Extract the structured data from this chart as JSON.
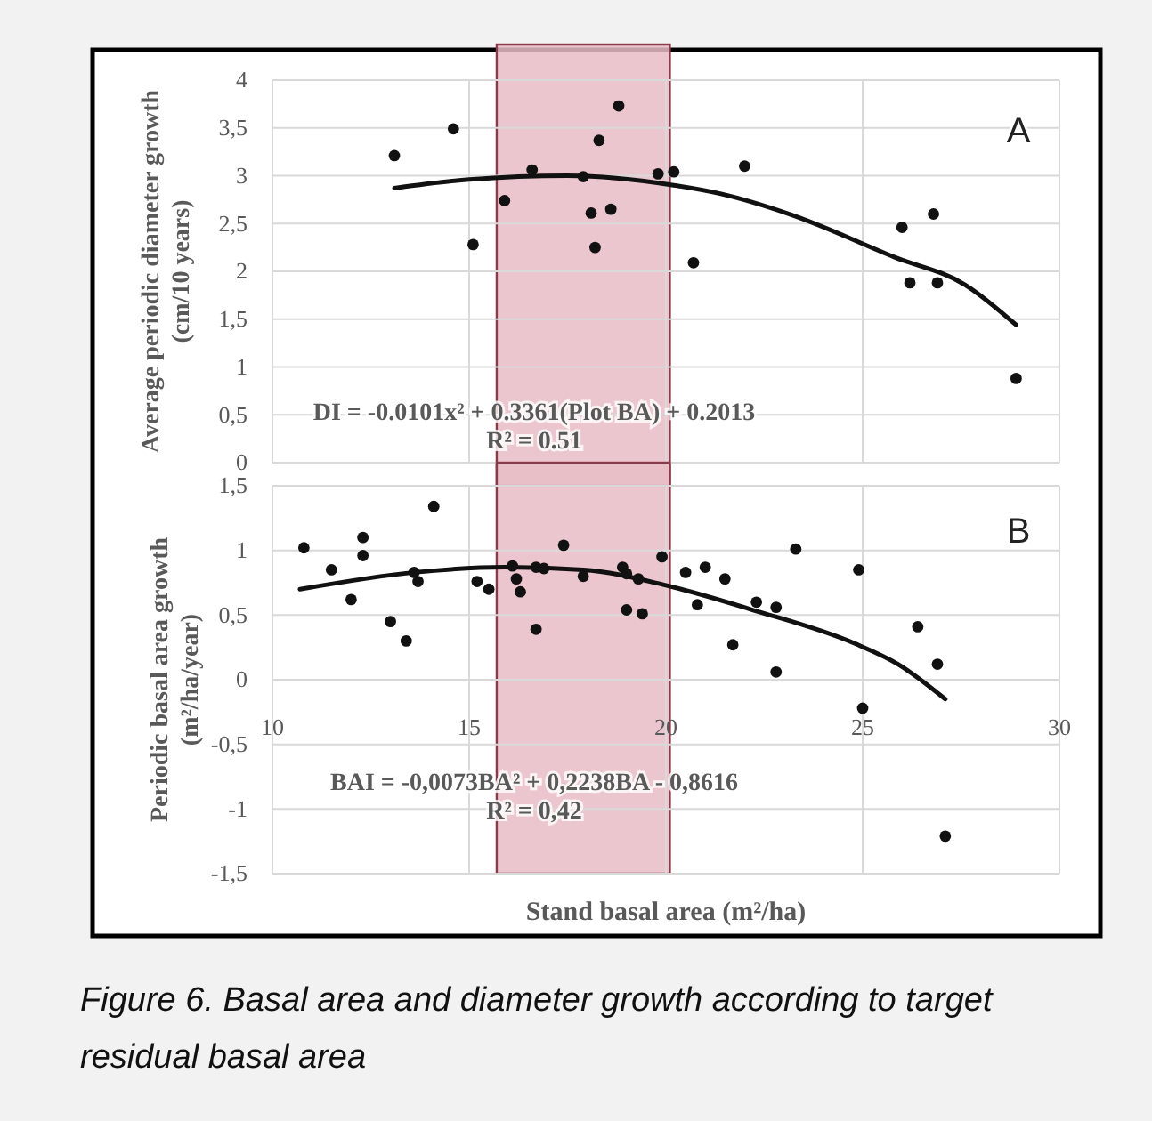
{
  "chart_data": [
    {
      "type": "scatter",
      "ylabel": "Average periodic diameter growth (cm/10 years)",
      "xlim": [
        10,
        30
      ],
      "xticks": [
        10,
        15,
        20,
        25,
        30
      ],
      "ylim": [
        0,
        4
      ],
      "yticks": [
        0,
        {
          "value": 0.5,
          "label": "0,5"
        },
        1,
        {
          "value": 1.5,
          "label": "1,5"
        },
        2,
        {
          "value": 2.5,
          "label": "2,5"
        },
        3,
        {
          "value": 3.5,
          "label": "3,5"
        },
        4
      ],
      "grid": true,
      "tick_labels": "y",
      "bands": [
        {
          "axis": "x",
          "from": 15.7,
          "to": 20.1,
          "color": "#e8bcc6"
        }
      ],
      "annotations": [
        "A",
        "DI = -0.0101x² + 0.3361(Plot BA) + 0.2013",
        "R² = 0.51"
      ],
      "series": [
        {
          "marker": "circle",
          "color": "#111111",
          "x": [
            13.1,
            14.6,
            15.1,
            15.9,
            16.6,
            17.9,
            18.3,
            18.1,
            18.6,
            18.2,
            18.8,
            19.8,
            20.2,
            20.7,
            22.0,
            26.0,
            26.8,
            26.2,
            26.9,
            28.9
          ],
          "values": [
            3.21,
            3.49,
            2.28,
            2.74,
            3.06,
            2.99,
            3.37,
            2.61,
            2.65,
            2.25,
            3.73,
            3.02,
            3.04,
            2.09,
            3.1,
            2.46,
            2.6,
            1.88,
            1.88,
            0.88
          ]
        },
        {
          "type": "line",
          "marker": "none",
          "color": "#111111",
          "x": [
            13.1,
            15.0,
            17.5,
            20.2,
            21.4,
            23.2,
            25.8,
            27.6,
            28.9
          ],
          "values": [
            2.87,
            2.96,
            3.0,
            2.9,
            2.81,
            2.59,
            2.15,
            1.86,
            1.44
          ]
        }
      ]
    },
    {
      "type": "scatter",
      "xlabel": "Stand basal area (m²/ha)",
      "ylabel": "Periodic basal area growth (m²/ha/year)",
      "xlim": [
        10,
        30
      ],
      "xticks": [
        10,
        15,
        20,
        25,
        30
      ],
      "ylim": [
        -1.5,
        1.5
      ],
      "yticks": [
        {
          "value": -1.5,
          "label": "-1,5"
        },
        -1,
        {
          "value": -0.5,
          "label": "-0,5"
        },
        0,
        {
          "value": 0.5,
          "label": "0,5"
        },
        1,
        {
          "value": 1.5,
          "label": "1,5"
        }
      ],
      "grid": true,
      "bands": [
        {
          "axis": "x",
          "from": 15.7,
          "to": 20.1,
          "color": "#e8bcc6"
        }
      ],
      "annotations": [
        "B",
        "BAI = -0,0073BA² + 0,2238BA - 0,8616",
        "R² = 0,42",
        "Figure 6. Basal area and diameter growth according to target residual basal area"
      ],
      "series": [
        {
          "marker": "circle",
          "color": "#111111",
          "x": [
            10.8,
            11.5,
            12.0,
            12.3,
            12.3,
            13.0,
            13.4,
            13.6,
            13.7,
            14.1,
            15.2,
            15.5,
            16.1,
            16.2,
            16.3,
            16.7,
            16.7,
            16.9,
            17.4,
            17.9,
            18.9,
            19.0,
            19.0,
            19.3,
            19.4,
            19.9,
            20.5,
            20.8,
            21.0,
            21.5,
            21.7,
            22.3,
            22.8,
            22.8,
            23.3,
            24.9,
            25.0,
            26.4,
            26.9,
            27.1
          ],
          "values": [
            1.02,
            0.85,
            0.62,
            1.1,
            0.96,
            0.45,
            0.3,
            0.83,
            0.76,
            1.34,
            0.76,
            0.7,
            0.88,
            0.78,
            0.68,
            0.39,
            0.87,
            0.86,
            1.04,
            0.8,
            0.87,
            0.82,
            0.54,
            0.78,
            0.51,
            0.95,
            0.83,
            0.58,
            0.87,
            0.78,
            0.27,
            0.6,
            0.56,
            0.06,
            1.01,
            0.85,
            -0.22,
            0.41,
            0.12,
            -1.21
          ]
        },
        {
          "type": "line",
          "marker": "none",
          "color": "#111111",
          "x": [
            10.7,
            13.6,
            15.9,
            17.9,
            20.0,
            22.2,
            24.8,
            25.9,
            27.1
          ],
          "values": [
            0.7,
            0.83,
            0.87,
            0.85,
            0.73,
            0.54,
            0.28,
            0.12,
            -0.15
          ]
        }
      ]
    }
  ]
}
